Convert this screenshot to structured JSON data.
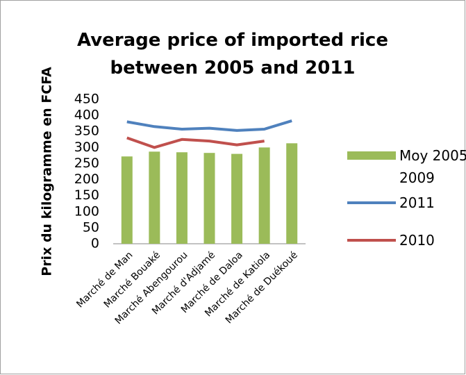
{
  "chart_data": {
    "type": "bar",
    "title": "Average price of imported rice between 2005 and 2011",
    "y_label": "Prix du kilogramme en FCFA",
    "categories": [
      "Marché de Man",
      "Marché Bouaké",
      "Marché Abengourou",
      "Marché d'Adjamé",
      "Marché de Daloa",
      "Marché de Katiola",
      "Marché de Duékoué"
    ],
    "series": [
      {
        "name": "Moy 2005-2009",
        "type": "bar",
        "color": "#9bbb59",
        "values": [
          272,
          287,
          285,
          283,
          280,
          300,
          313
        ]
      },
      {
        "name": "2011",
        "type": "line",
        "color": "#4f81bd",
        "values": [
          380,
          365,
          357,
          360,
          353,
          357,
          383
        ]
      },
      {
        "name": "2010",
        "type": "line",
        "color": "#c0504d",
        "values": [
          330,
          300,
          325,
          320,
          308,
          320,
          null
        ]
      }
    ],
    "ylim": [
      0,
      450
    ],
    "yticks": [
      0,
      50,
      100,
      150,
      200,
      250,
      300,
      350,
      400,
      450
    ],
    "grid": false,
    "legend": "right"
  }
}
